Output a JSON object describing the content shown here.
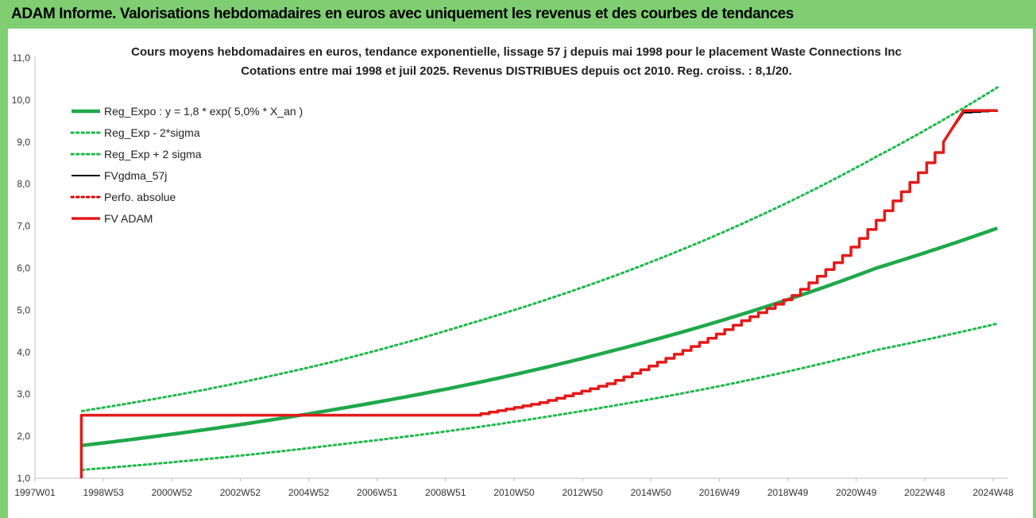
{
  "header": {
    "title": "ADAM Informe. Valorisations hebdomadaires en euros avec uniquement les revenus et des courbes de tendances"
  },
  "colors": {
    "frame": "#7fcf72",
    "reg": "#1fa84a",
    "sigma": "#1fb84a",
    "fvgdma": "#000000",
    "perfo": "#e00000",
    "fvadam": "#e41a1a"
  },
  "chart_data": {
    "type": "line",
    "title": "Cours moyens hebdomadaires en euros, tendance exponentielle, lissage 57 j depuis mai 1998 pour le placement Waste Connections Inc",
    "subtitle": "Cotations entre mai 1998 et juil 2025. Revenus DISTRIBUES depuis oct 2010. Reg. croiss. : 8,1/20.",
    "xlabel": "",
    "ylabel": "",
    "ylim": [
      1.0,
      11.0
    ],
    "xlim": [
      1997.0,
      2025.9
    ],
    "grid": false,
    "legend_position": "top-left",
    "y_ticks": [
      "1,0",
      "2,0",
      "3,0",
      "4,0",
      "5,0",
      "6,0",
      "7,0",
      "8,0",
      "9,0",
      "10,0",
      "11,0"
    ],
    "x_ticks": [
      "1997W01",
      "1998W53",
      "2000W52",
      "2002W52",
      "2004W52",
      "2006W51",
      "2008W51",
      "2010W50",
      "2012W50",
      "2014W50",
      "2016W49",
      "2018W49",
      "2020W49",
      "2022W48",
      "2024W48"
    ],
    "series": [
      {
        "name": "Reg_Expo : y = 1,8 * exp( 5,0% *  X_an )",
        "style": "solid",
        "color": "#1fa84a",
        "x": [
          1998.4,
          2002,
          2006,
          2010,
          2014,
          2018,
          2022,
          2025.6
        ],
        "y": [
          1.78,
          2.15,
          2.65,
          3.25,
          4.0,
          4.9,
          6.0,
          6.95
        ]
      },
      {
        "name": "Reg_Exp - 2*sigma",
        "style": "dotted",
        "color": "#1fb84a",
        "x": [
          1998.4,
          2002,
          2006,
          2010,
          2014,
          2018,
          2022,
          2025.6
        ],
        "y": [
          1.2,
          1.45,
          1.8,
          2.2,
          2.7,
          3.3,
          4.05,
          4.68
        ]
      },
      {
        "name": "Reg_Exp + 2 sigma",
        "style": "dotted",
        "color": "#1fb84a",
        "x": [
          1998.4,
          2002,
          2006,
          2010,
          2014,
          2018,
          2022,
          2025.6
        ],
        "y": [
          2.6,
          3.1,
          3.8,
          4.7,
          5.75,
          7.05,
          8.65,
          10.3
        ]
      },
      {
        "name": "FVgdma_57j",
        "style": "solid-thin",
        "color": "#000000",
        "x": [
          1998.4,
          2010.0,
          2012,
          2014,
          2016,
          2018,
          2019.5,
          2021,
          2022.5,
          2024,
          2024.6,
          2025.6
        ],
        "y": [
          2.5,
          2.5,
          2.8,
          3.25,
          3.95,
          4.75,
          5.35,
          6.3,
          7.6,
          9.0,
          9.7,
          9.75
        ]
      },
      {
        "name": "Perfo. absolue",
        "style": "dotted",
        "color": "#e00000",
        "x": [],
        "y": []
      },
      {
        "name": "FV ADAM",
        "style": "solid-thick",
        "color": "#e41a1a",
        "x": [
          1998.38,
          1998.38,
          1998.4,
          2010.0,
          2012,
          2014,
          2016,
          2018,
          2019.5,
          2021,
          2022.5,
          2024,
          2024.6,
          2025.6
        ],
        "y": [
          1.0,
          2.5,
          2.5,
          2.5,
          2.8,
          3.25,
          3.95,
          4.75,
          5.35,
          6.3,
          7.6,
          9.0,
          9.75,
          9.75
        ]
      }
    ]
  }
}
